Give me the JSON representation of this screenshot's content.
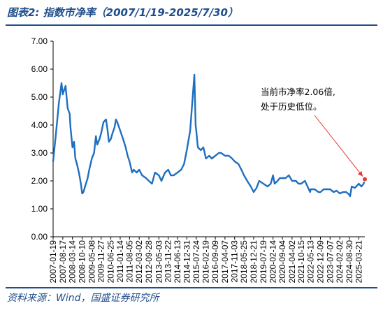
{
  "header": {
    "title": "图表2:  指数市净率（2007/1/19-2025/7/30）"
  },
  "footer": {
    "source": "资料来源：Wind，国盛证券研究所"
  },
  "chart_data": {
    "type": "line",
    "title": "指数市净率（2007/1/19-2025/7/30）",
    "xlabel": "",
    "ylabel": "",
    "ylim": [
      0,
      7
    ],
    "y_ticks": [
      "0.00",
      "1.00",
      "2.00",
      "3.00",
      "4.00",
      "5.00",
      "6.00",
      "7.00"
    ],
    "x_tick_labels": [
      "2007-01-19",
      "2007-08-17",
      "2008-03-14",
      "2008-10-10",
      "2009-05-08",
      "2009-11-27",
      "2010-06-25",
      "2011-01-14",
      "2011-08-05",
      "2012-03-02",
      "2012-09-28",
      "2013-05-03",
      "2013-11-22",
      "2014-06-13",
      "2014-12-31",
      "2015-07-24",
      "2016-02-19",
      "2016-09-09",
      "2017-04-07",
      "2017-11-03",
      "2018-05-25",
      "2018-12-21",
      "2019-07-19",
      "2020-02-14",
      "2020-09-04",
      "2021-04-02",
      "2021-10-15",
      "2022-05-13",
      "2022-12-09",
      "2023-07-07",
      "2024-02-02",
      "2024-08-30",
      "2025-03-21"
    ],
    "grid": false,
    "legend": "none",
    "line_color": "#1F6FC0",
    "marker_color": "#E53935",
    "annotation": {
      "lines": [
        "当前市净率2.06倍,",
        "处于历史低位。"
      ],
      "target": {
        "x": "2025-07-30",
        "y": 2.06
      }
    },
    "series": [
      {
        "x": [
          "2007-01-19",
          "2007-03-16",
          "2007-05-25",
          "2007-07-20",
          "2007-08-17",
          "2007-10-16",
          "2007-11-30",
          "2008-01-14",
          "2008-02-01",
          "2008-03-14",
          "2008-04-18",
          "2008-05-16",
          "2008-06-20",
          "2008-08-01",
          "2008-09-12",
          "2008-10-10",
          "2008-11-07",
          "2008-12-12",
          "2009-02-06",
          "2009-03-13",
          "2009-05-08",
          "2009-06-26",
          "2009-08-04",
          "2009-09-04",
          "2009-10-23",
          "2009-11-27",
          "2010-01-15",
          "2010-03-12",
          "2010-04-16",
          "2010-05-14",
          "2010-06-25",
          "2010-07-30",
          "2010-09-10",
          "2010-10-15",
          "2010-11-12",
          "2011-01-14",
          "2011-03-18",
          "2011-05-13",
          "2011-06-24",
          "2011-08-05",
          "2011-09-30",
          "2011-11-04",
          "2012-01-06",
          "2012-03-02",
          "2012-05-04",
          "2012-07-27",
          "2012-09-28",
          "2012-12-04",
          "2013-02-08",
          "2013-05-03",
          "2013-06-28",
          "2013-09-13",
          "2013-11-22",
          "2014-01-17",
          "2014-03-21",
          "2014-06-13",
          "2014-08-29",
          "2014-10-31",
          "2014-12-31",
          "2015-03-13",
          "2015-04-24",
          "2015-06-12",
          "2015-07-10",
          "2015-07-24",
          "2015-08-28",
          "2015-10-30",
          "2015-12-25",
          "2016-02-19",
          "2016-04-29",
          "2016-06-24",
          "2016-09-09",
          "2016-11-25",
          "2017-01-13",
          "2017-04-07",
          "2017-06-30",
          "2017-09-08",
          "2017-11-03",
          "2018-01-26",
          "2018-03-30",
          "2018-05-25",
          "2018-08-03",
          "2018-10-19",
          "2018-12-21",
          "2019-02-22",
          "2019-04-19",
          "2019-07-19",
          "2019-10-18",
          "2019-12-27",
          "2020-02-14",
          "2020-03-20",
          "2020-05-22",
          "2020-07-10",
          "2020-09-04",
          "2020-11-13",
          "2021-01-22",
          "2021-04-02",
          "2021-06-25",
          "2021-08-20",
          "2021-10-15",
          "2022-01-07",
          "2022-03-04",
          "2022-04-29",
          "2022-05-13",
          "2022-08-05",
          "2022-10-28",
          "2022-12-09",
          "2023-02-17",
          "2023-05-12",
          "2023-07-07",
          "2023-09-22",
          "2023-11-24",
          "2024-02-02",
          "2024-04-12",
          "2024-06-21",
          "2024-08-30",
          "2024-09-13",
          "2024-10-18",
          "2024-12-27",
          "2025-03-21",
          "2025-05-16",
          "2025-07-04",
          "2025-07-30"
        ],
        "y": [
          2.7,
          3.6,
          4.8,
          5.5,
          5.1,
          5.4,
          4.6,
          4.4,
          3.9,
          3.2,
          3.4,
          2.8,
          2.6,
          2.3,
          1.9,
          1.55,
          1.6,
          1.8,
          2.1,
          2.4,
          2.8,
          3.0,
          3.6,
          3.3,
          3.5,
          3.7,
          4.1,
          4.2,
          3.8,
          3.4,
          3.5,
          3.7,
          3.9,
          4.2,
          4.1,
          3.8,
          3.5,
          3.2,
          2.9,
          2.7,
          2.3,
          2.4,
          2.3,
          2.4,
          2.2,
          2.1,
          2.0,
          1.9,
          2.3,
          2.2,
          2.0,
          2.3,
          2.4,
          2.2,
          2.2,
          2.3,
          2.4,
          2.6,
          3.1,
          3.8,
          4.7,
          5.8,
          4.0,
          3.8,
          3.2,
          3.1,
          3.2,
          2.8,
          2.9,
          2.8,
          2.9,
          3.0,
          3.0,
          2.9,
          2.9,
          2.8,
          2.7,
          2.6,
          2.4,
          2.2,
          2.0,
          1.8,
          1.6,
          1.75,
          2.0,
          1.9,
          1.8,
          1.9,
          2.2,
          1.9,
          2.0,
          2.1,
          2.1,
          2.1,
          2.2,
          2.0,
          2.0,
          1.9,
          1.9,
          2.0,
          1.8,
          1.6,
          1.7,
          1.7,
          1.6,
          1.6,
          1.7,
          1.7,
          1.7,
          1.6,
          1.65,
          1.55,
          1.6,
          1.6,
          1.5,
          1.45,
          1.8,
          1.75,
          1.9,
          1.8,
          1.9,
          2.06
        ]
      }
    ]
  }
}
